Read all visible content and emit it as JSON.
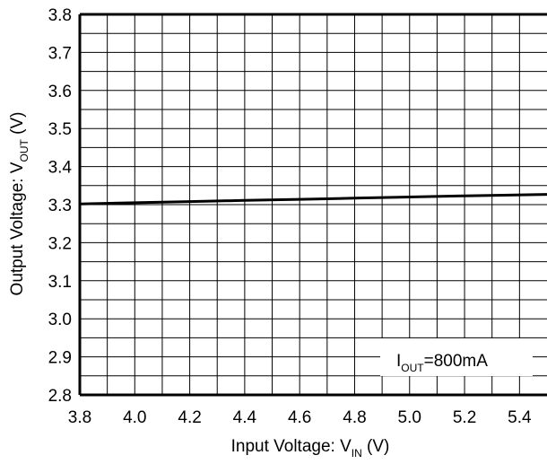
{
  "chart_data": {
    "type": "line",
    "title": "",
    "xlabel": {
      "main": "Input Voltage: V",
      "sub": "IN",
      "unit": " (V)"
    },
    "ylabel": {
      "main": "Output Voltage: V",
      "sub": "OUT",
      "unit": " (V)"
    },
    "xlim": [
      3.8,
      5.5
    ],
    "ylim": [
      2.8,
      3.8
    ],
    "x_ticks": [
      "3.8",
      "4.0",
      "4.2",
      "4.4",
      "4.6",
      "4.8",
      "5.0",
      "5.2",
      "5.4"
    ],
    "x_tick_values": [
      3.8,
      4.0,
      4.2,
      4.4,
      4.6,
      4.8,
      5.0,
      5.2,
      5.4
    ],
    "y_ticks": [
      "3.8",
      "3.7",
      "3.6",
      "3.5",
      "3.4",
      "3.3",
      "3.2",
      "3.1",
      "3.0",
      "2.9",
      "2.8"
    ],
    "y_tick_values": [
      3.8,
      3.7,
      3.6,
      3.5,
      3.4,
      3.3,
      3.2,
      3.1,
      3.0,
      2.9,
      2.8
    ],
    "grid": true,
    "grid_x_step": 0.1,
    "grid_y_step": 0.05,
    "series": [
      {
        "x": [
          3.8,
          4.0,
          4.2,
          4.4,
          4.6,
          4.8,
          5.0,
          5.2,
          5.5
        ],
        "y": [
          3.302,
          3.305,
          3.308,
          3.311,
          3.314,
          3.317,
          3.32,
          3.323,
          3.327
        ]
      }
    ],
    "annotation": {
      "main": "I",
      "sub": "OUT",
      "rest": "=800mA"
    }
  }
}
